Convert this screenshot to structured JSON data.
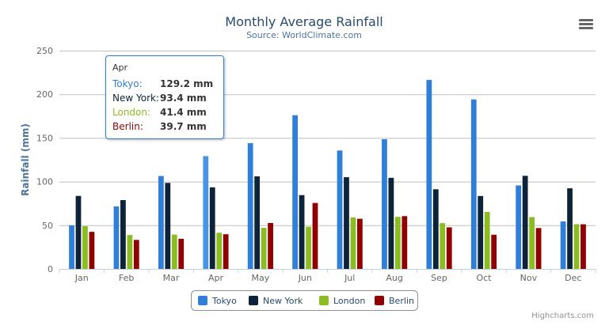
{
  "chart_data": {
    "type": "bar",
    "title": "Monthly Average Rainfall",
    "subtitle": "Source: WorldClimate.com",
    "xlabel": "",
    "ylabel": "Rainfall (mm)",
    "ylim": [
      0,
      250
    ],
    "yticks": [
      0,
      50,
      100,
      150,
      200,
      250
    ],
    "grid": true,
    "legend_position": "bottom",
    "categories": [
      "Jan",
      "Feb",
      "Mar",
      "Apr",
      "May",
      "Jun",
      "Jul",
      "Aug",
      "Sep",
      "Oct",
      "Nov",
      "Dec"
    ],
    "series": [
      {
        "name": "Tokyo",
        "color": "#2f7ed8",
        "values": [
          49.9,
          71.5,
          106.4,
          129.2,
          144.0,
          176.0,
          135.6,
          148.5,
          216.4,
          194.1,
          95.6,
          54.4
        ]
      },
      {
        "name": "New York",
        "color": "#0d233a",
        "values": [
          83.6,
          78.8,
          98.5,
          93.4,
          106.0,
          84.5,
          105.0,
          104.3,
          91.2,
          83.5,
          106.6,
          92.3
        ]
      },
      {
        "name": "London",
        "color": "#8bbc21",
        "values": [
          48.9,
          38.8,
          39.3,
          41.4,
          47.0,
          48.3,
          59.0,
          59.6,
          52.4,
          65.2,
          59.3,
          51.2
        ]
      },
      {
        "name": "Berlin",
        "color": "#910000",
        "values": [
          42.4,
          33.2,
          34.5,
          39.7,
          52.6,
          75.5,
          57.4,
          60.4,
          47.6,
          39.1,
          46.8,
          51.1
        ]
      }
    ],
    "tooltip": {
      "header": "Apr",
      "rows": [
        {
          "name": "Tokyo:",
          "value": "129.2 mm"
        },
        {
          "name": "New York:",
          "value": "93.4 mm"
        },
        {
          "name": "London:",
          "value": "41.4 mm"
        },
        {
          "name": "Berlin:",
          "value": "39.7 mm"
        }
      ]
    }
  },
  "credits": "Highcharts.com",
  "menu_icon": "hamburger-menu-icon"
}
